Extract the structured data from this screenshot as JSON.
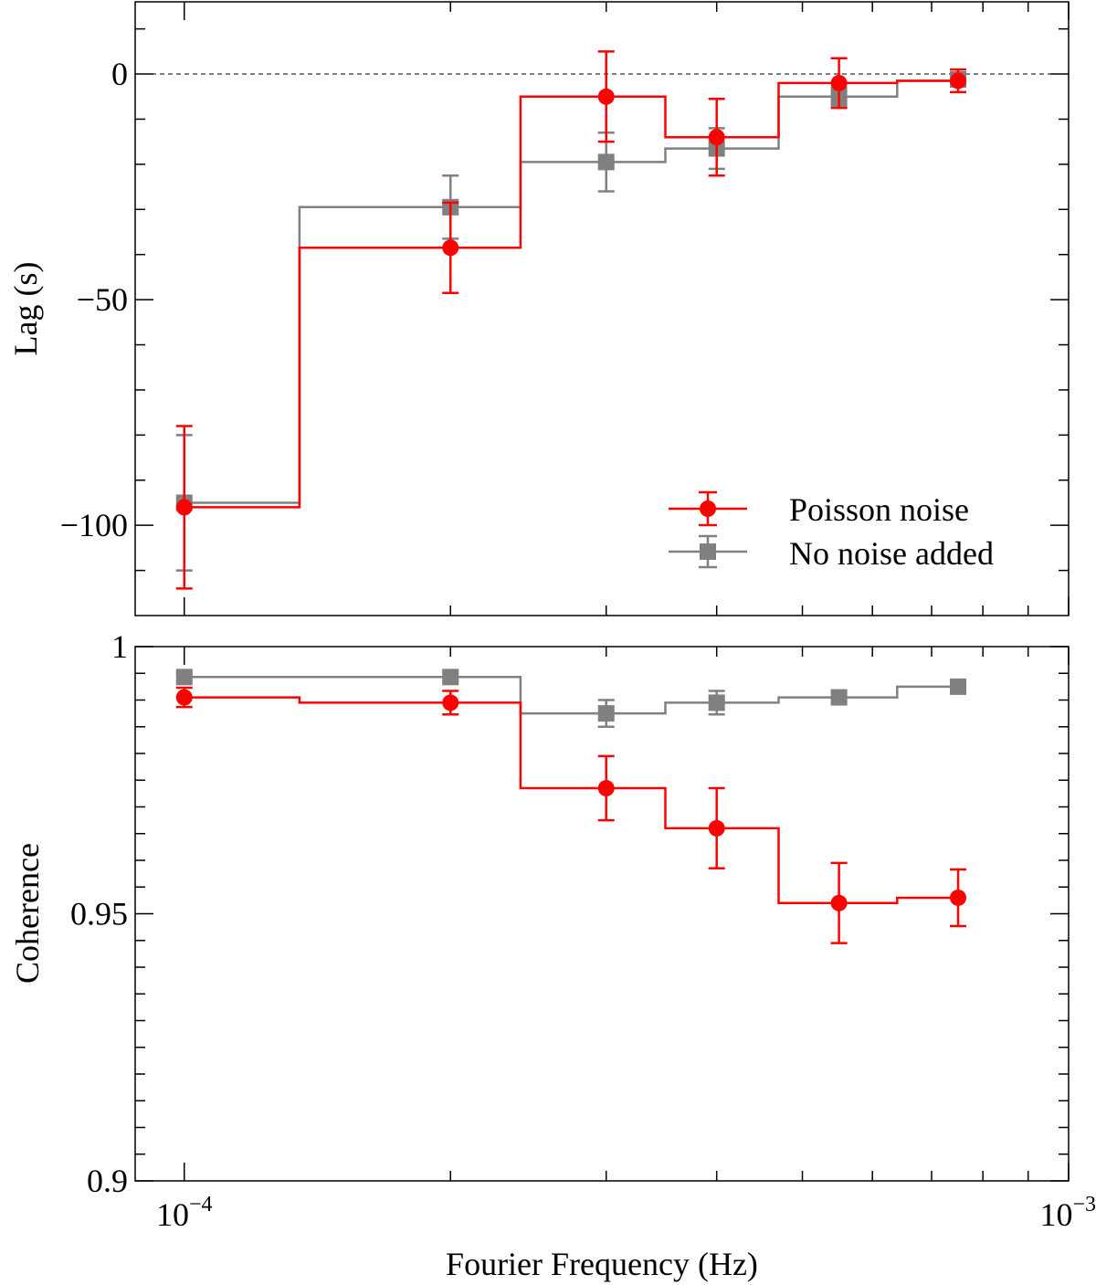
{
  "chart_data": [
    {
      "type": "scatter",
      "panel": "top",
      "ylabel": "Lag (s)",
      "xscale": "log",
      "xlim": [
        8.8e-05,
        0.001
      ],
      "ylim": [
        -120,
        16
      ],
      "yticks": [
        0,
        -50,
        -100
      ],
      "ytick_labels": [
        "0",
        "−50",
        "−100"
      ],
      "reference_line": 0,
      "series": [
        {
          "name": "No noise added",
          "color": "#808080",
          "marker": "square",
          "x": [
            0.0001,
            0.0002,
            0.0003,
            0.0004,
            0.00055,
            0.00075
          ],
          "y": [
            -95,
            -29.5,
            -19.5,
            -16.5,
            -5,
            -1.2
          ],
          "yerr": [
            15,
            7,
            6.5,
            4.5,
            2,
            1.5
          ],
          "step_edges": [
            0.0001,
            0.000135,
            0.00024,
            0.00035,
            0.00047,
            0.00064,
            0.00075
          ],
          "step_values": [
            -95,
            -29.5,
            -19.5,
            -16.5,
            -5,
            -1.5
          ]
        },
        {
          "name": "Poisson noise",
          "color": "#ff0000",
          "marker": "circle",
          "x": [
            0.0001,
            0.0002,
            0.0003,
            0.0004,
            0.00055,
            0.00075
          ],
          "y": [
            -96,
            -38.5,
            -5,
            -14,
            -2,
            -1.5
          ],
          "yerr": [
            18,
            10,
            10,
            8.5,
            5.5,
            2.5
          ],
          "step_edges": [
            0.0001,
            0.000135,
            0.00024,
            0.00035,
            0.00047,
            0.00064,
            0.00075
          ],
          "step_values": [
            -96,
            -38.5,
            -5,
            -14,
            -2,
            -1.5
          ]
        }
      ],
      "legend": {
        "position": "lower-right",
        "entries": [
          "Poisson noise",
          "No noise added"
        ]
      }
    },
    {
      "type": "scatter",
      "panel": "bottom",
      "ylabel": "Coherence",
      "xlabel": "Fourier Frequency (Hz)",
      "xscale": "log",
      "xlim": [
        8.8e-05,
        0.001
      ],
      "ylim": [
        0.9,
        1
      ],
      "yticks": [
        1,
        0.95,
        0.9
      ],
      "ytick_labels": [
        "1",
        "0.95",
        "0.9"
      ],
      "xtick_labels": [
        {
          "value": 0.0001,
          "base": "10",
          "exp": "−4"
        },
        {
          "value": 0.001,
          "base": "10",
          "exp": "−3"
        }
      ],
      "series": [
        {
          "name": "No noise added",
          "color": "#808080",
          "marker": "square",
          "x": [
            0.0001,
            0.0002,
            0.0003,
            0.0004,
            0.00055,
            0.00075
          ],
          "y": [
            0.9943,
            0.9943,
            0.9875,
            0.9895,
            0.9905,
            0.9925
          ],
          "yerr": [
            0.0008,
            0.0008,
            0.0025,
            0.0022,
            0.001,
            0.0008
          ],
          "step_edges": [
            0.0001,
            0.000135,
            0.00024,
            0.00035,
            0.00047,
            0.00064,
            0.00075
          ],
          "step_values": [
            0.9943,
            0.9943,
            0.9875,
            0.9895,
            0.9905,
            0.9925
          ]
        },
        {
          "name": "Poisson noise",
          "color": "#ff0000",
          "marker": "circle",
          "x": [
            0.0001,
            0.0002,
            0.0003,
            0.0004,
            0.00055,
            0.00075
          ],
          "y": [
            0.9905,
            0.9895,
            0.9735,
            0.966,
            0.952,
            0.953
          ],
          "yerr": [
            0.0018,
            0.0022,
            0.006,
            0.0075,
            0.0075,
            0.0053
          ],
          "step_edges": [
            0.0001,
            0.000135,
            0.00024,
            0.00035,
            0.00047,
            0.00064,
            0.00075
          ],
          "step_values": [
            0.9905,
            0.9895,
            0.9735,
            0.966,
            0.952,
            0.953
          ]
        }
      ]
    }
  ]
}
